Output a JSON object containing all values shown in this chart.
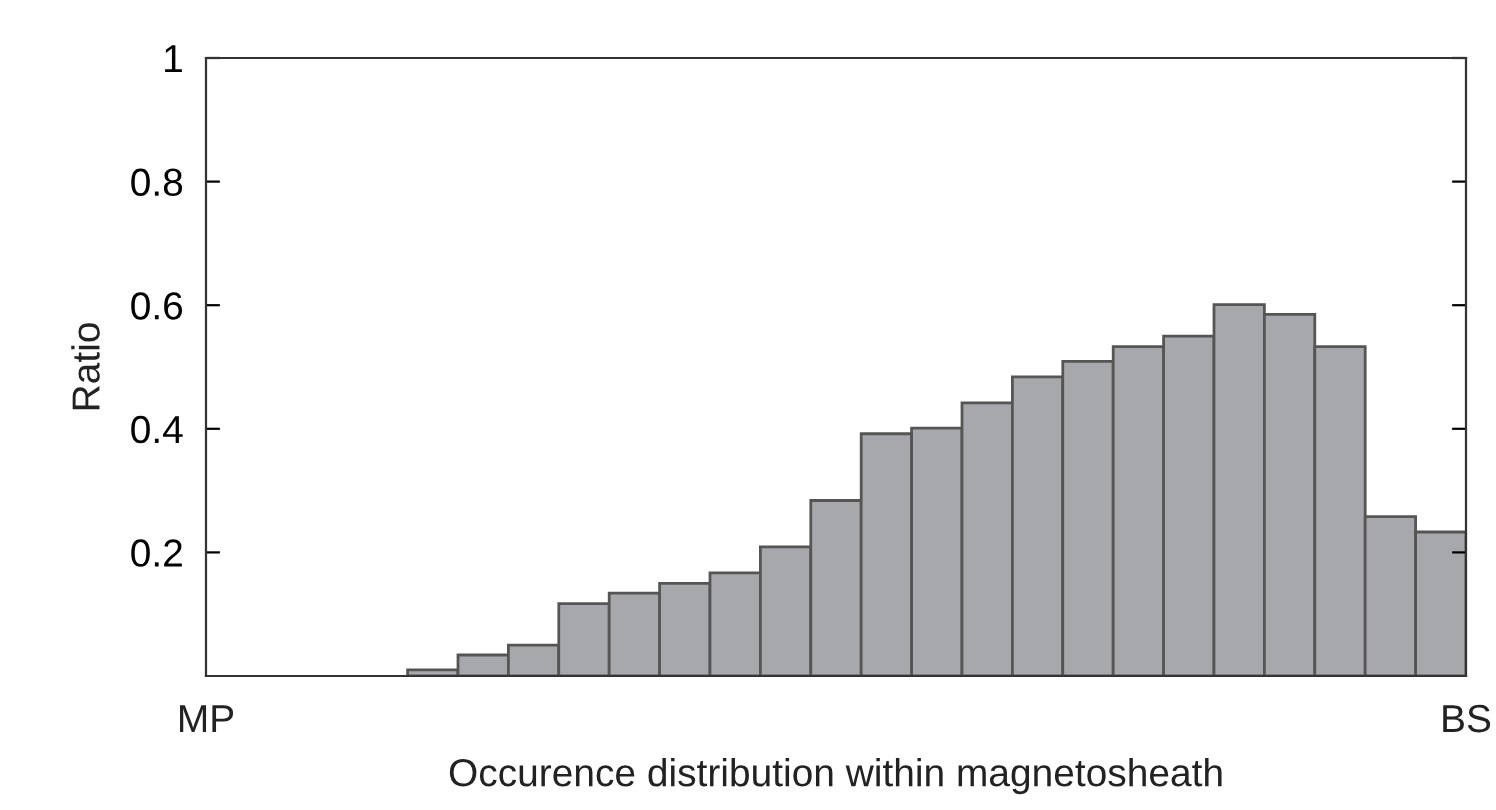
{
  "chart_data": {
    "type": "bar",
    "xlabel": "Occurence distribution within magnetosheath",
    "ylabel": "Ratio",
    "categories": [
      null,
      null,
      null,
      null,
      null,
      null,
      null,
      null,
      null,
      null,
      null,
      null,
      null,
      null,
      null,
      null,
      null,
      null,
      null,
      null,
      null,
      null,
      null,
      null,
      null
    ],
    "values": [
      0,
      0,
      0,
      0,
      0.01,
      0.034,
      0.05,
      0.117,
      0.134,
      0.15,
      0.167,
      0.209,
      0.284,
      0.392,
      0.401,
      0.442,
      0.484,
      0.509,
      0.533,
      0.55,
      0.601,
      0.585,
      0.533,
      0.258,
      0.233
    ],
    "color": "#a7a8ab",
    "annotations": [
      "MP",
      "BS"
    ],
    "ylim": [
      0,
      1
    ],
    "yticks": [
      0.2,
      0.4,
      0.6,
      0.8,
      1
    ],
    "grid": false,
    "legend": false
  }
}
